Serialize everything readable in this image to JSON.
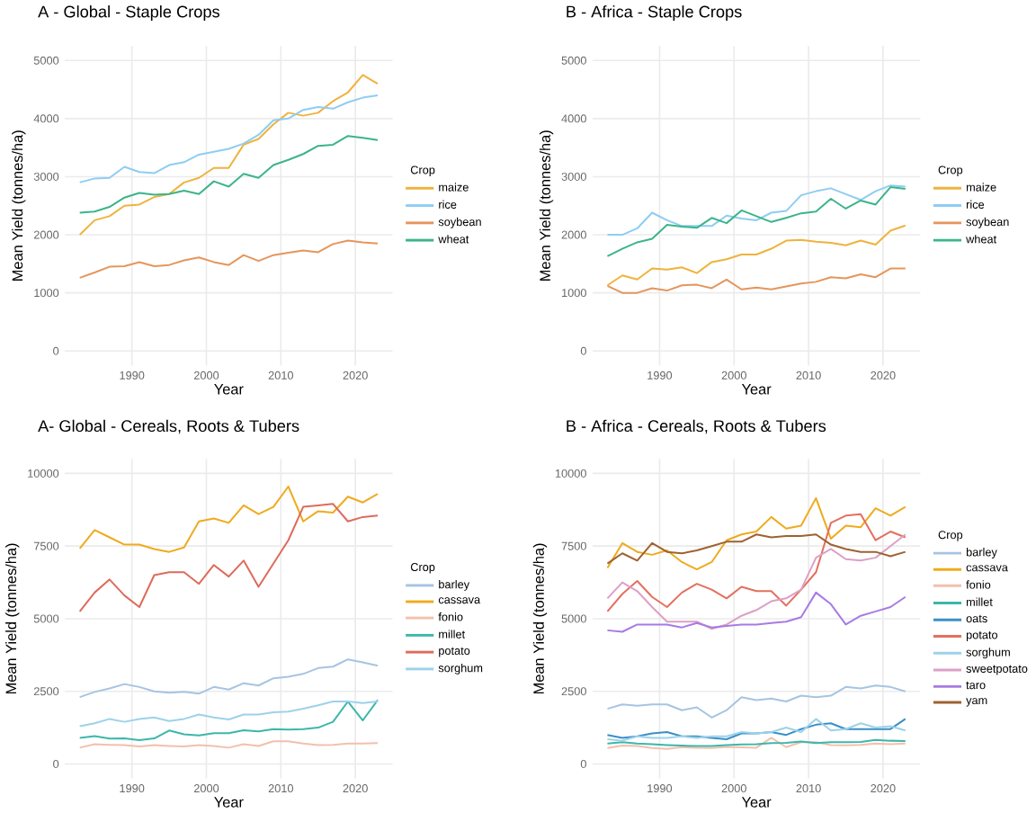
{
  "chart_data": [
    {
      "type": "line",
      "title": "A - Global - Staple Crops",
      "xlabel": "Year",
      "ylabel": "Mean Yield (tonnes/ha)",
      "legend_title": "Crop",
      "legend": "right",
      "grid": true,
      "x": [
        1983,
        1985,
        1987,
        1989,
        1991,
        1993,
        1995,
        1997,
        1999,
        2001,
        2003,
        2005,
        2007,
        2009,
        2011,
        2013,
        2015,
        2017,
        2019,
        2021,
        2023
      ],
      "xlim": [
        1981,
        2025
      ],
      "ylim": [
        -250,
        5250
      ],
      "xticks": [
        1990,
        2000,
        2010,
        2020
      ],
      "yticks": [
        0,
        1000,
        2000,
        3000,
        4000,
        5000
      ],
      "series": [
        {
          "name": "maize",
          "color": "#efb33c",
          "values": [
            2000,
            2250,
            2320,
            2500,
            2520,
            2650,
            2700,
            2900,
            2980,
            3150,
            3150,
            3550,
            3650,
            3900,
            4100,
            4050,
            4100,
            4300,
            4450,
            4750,
            4600
          ]
        },
        {
          "name": "rice",
          "color": "#8ecdf2",
          "values": [
            2900,
            2970,
            2980,
            3170,
            3080,
            3060,
            3200,
            3250,
            3380,
            3430,
            3480,
            3570,
            3720,
            3970,
            4000,
            4150,
            4200,
            4170,
            4280,
            4360,
            4400
          ]
        },
        {
          "name": "soybean",
          "color": "#e4965c",
          "values": [
            1260,
            1350,
            1450,
            1460,
            1530,
            1460,
            1480,
            1560,
            1610,
            1530,
            1480,
            1650,
            1550,
            1650,
            1690,
            1730,
            1700,
            1840,
            1900,
            1870,
            1850
          ]
        },
        {
          "name": "wheat",
          "color": "#3cb48a",
          "values": [
            2380,
            2400,
            2480,
            2640,
            2720,
            2690,
            2700,
            2760,
            2700,
            2920,
            2830,
            3050,
            2980,
            3200,
            3290,
            3390,
            3530,
            3550,
            3700,
            3670,
            3630
          ]
        }
      ]
    },
    {
      "type": "line",
      "title": "B - Africa - Staple Crops",
      "xlabel": "Year",
      "ylabel": "Mean Yield (tonnes/ha)",
      "legend_title": "Crop",
      "legend": "right",
      "grid": true,
      "x": [
        1983,
        1985,
        1987,
        1989,
        1991,
        1993,
        1995,
        1997,
        1999,
        2001,
        2003,
        2005,
        2007,
        2009,
        2011,
        2013,
        2015,
        2017,
        2019,
        2021,
        2023
      ],
      "xlim": [
        1981,
        2025
      ],
      "ylim": [
        -250,
        5250
      ],
      "xticks": [
        1990,
        2000,
        2010,
        2020
      ],
      "yticks": [
        0,
        1000,
        2000,
        3000,
        4000,
        5000
      ],
      "series": [
        {
          "name": "maize",
          "color": "#efb33c",
          "values": [
            1130,
            1300,
            1230,
            1420,
            1400,
            1440,
            1340,
            1530,
            1580,
            1660,
            1660,
            1760,
            1900,
            1910,
            1880,
            1860,
            1820,
            1900,
            1830,
            2070,
            2160
          ]
        },
        {
          "name": "rice",
          "color": "#8ecdf2",
          "values": [
            2000,
            2000,
            2110,
            2380,
            2250,
            2150,
            2150,
            2150,
            2330,
            2280,
            2250,
            2380,
            2410,
            2680,
            2750,
            2800,
            2700,
            2600,
            2750,
            2850,
            2830
          ]
        },
        {
          "name": "soybean",
          "color": "#e4965c",
          "values": [
            1120,
            1000,
            1000,
            1080,
            1040,
            1130,
            1140,
            1080,
            1230,
            1060,
            1090,
            1060,
            1110,
            1160,
            1190,
            1270,
            1250,
            1320,
            1270,
            1420,
            1420
          ]
        },
        {
          "name": "wheat",
          "color": "#3cb48a",
          "values": [
            1630,
            1760,
            1870,
            1930,
            2170,
            2140,
            2120,
            2290,
            2200,
            2420,
            2320,
            2220,
            2290,
            2370,
            2400,
            2620,
            2450,
            2590,
            2520,
            2820,
            2790
          ]
        }
      ]
    },
    {
      "type": "line",
      "title": "A- Global - Cereals, Roots & Tubers",
      "xlabel": "Year",
      "ylabel": "Mean Yield (tonnes/ha)",
      "legend_title": "Crop",
      "legend": "right",
      "grid": true,
      "x": [
        1983,
        1985,
        1987,
        1989,
        1991,
        1993,
        1995,
        1997,
        1999,
        2001,
        2003,
        2005,
        2007,
        2009,
        2011,
        2013,
        2015,
        2017,
        2019,
        2021,
        2023
      ],
      "xlim": [
        1981,
        2025
      ],
      "ylim": [
        -500,
        10500
      ],
      "xticks": [
        1990,
        2000,
        2010,
        2020
      ],
      "yticks": [
        0,
        2500,
        5000,
        7500,
        10000
      ],
      "series": [
        {
          "name": "barley",
          "color": "#a6c4e3",
          "values": [
            2300,
            2480,
            2600,
            2750,
            2650,
            2500,
            2450,
            2480,
            2420,
            2650,
            2560,
            2780,
            2700,
            2950,
            3000,
            3100,
            3300,
            3350,
            3600,
            3500,
            3380
          ]
        },
        {
          "name": "cassava",
          "color": "#eeab1e",
          "values": [
            7420,
            8050,
            7800,
            7550,
            7550,
            7400,
            7300,
            7450,
            8350,
            8450,
            8300,
            8900,
            8600,
            8850,
            9550,
            8350,
            8700,
            8650,
            9200,
            9000,
            9300
          ]
        },
        {
          "name": "fonio",
          "color": "#f2c0ad",
          "values": [
            560,
            680,
            660,
            650,
            600,
            650,
            620,
            600,
            650,
            620,
            560,
            680,
            620,
            780,
            780,
            700,
            650,
            660,
            700,
            700,
            720
          ]
        },
        {
          "name": "millet",
          "color": "#3cb7aa",
          "values": [
            900,
            960,
            870,
            880,
            820,
            880,
            1150,
            1020,
            980,
            1060,
            1060,
            1160,
            1120,
            1200,
            1180,
            1200,
            1250,
            1450,
            2150,
            1500,
            2200
          ]
        },
        {
          "name": "potato",
          "color": "#dd6b5c",
          "values": [
            5250,
            5900,
            6350,
            5800,
            5400,
            6500,
            6600,
            6600,
            6200,
            6850,
            6450,
            7000,
            6100,
            6900,
            7700,
            8850,
            8900,
            8950,
            8350,
            8500,
            8550
          ]
        },
        {
          "name": "sorghum",
          "color": "#9dd2ea",
          "values": [
            1300,
            1400,
            1550,
            1450,
            1550,
            1600,
            1480,
            1550,
            1700,
            1600,
            1530,
            1700,
            1700,
            1780,
            1800,
            1900,
            2020,
            2150,
            2150,
            2100,
            2150
          ]
        }
      ]
    },
    {
      "type": "line",
      "title": "B - Africa - Cereals, Roots & Tubers",
      "xlabel": "Year",
      "ylabel": "Mean Yield (tonnes/ha)",
      "legend_title": "Crop",
      "legend": "right",
      "grid": true,
      "x": [
        1983,
        1985,
        1987,
        1989,
        1991,
        1993,
        1995,
        1997,
        1999,
        2001,
        2003,
        2005,
        2007,
        2009,
        2011,
        2013,
        2015,
        2017,
        2019,
        2021,
        2023
      ],
      "xlim": [
        1981,
        2025
      ],
      "ylim": [
        -500,
        10500
      ],
      "xticks": [
        1990,
        2000,
        2010,
        2020
      ],
      "yticks": [
        0,
        2500,
        5000,
        7500,
        10000
      ],
      "series": [
        {
          "name": "barley",
          "color": "#a6c4e3",
          "values": [
            1900,
            2050,
            2000,
            2050,
            2050,
            1850,
            1950,
            1600,
            1850,
            2300,
            2200,
            2250,
            2150,
            2350,
            2300,
            2350,
            2650,
            2600,
            2700,
            2650,
            2500
          ]
        },
        {
          "name": "cassava",
          "color": "#eeab1e",
          "values": [
            6750,
            7600,
            7300,
            7200,
            7350,
            6950,
            6700,
            6950,
            7700,
            7900,
            8000,
            8500,
            8100,
            8200,
            9150,
            7750,
            8200,
            8150,
            8800,
            8550,
            8850
          ]
        },
        {
          "name": "fonio",
          "color": "#f2c0ad",
          "values": [
            550,
            630,
            620,
            550,
            520,
            580,
            560,
            550,
            590,
            570,
            560,
            900,
            580,
            750,
            750,
            650,
            640,
            660,
            700,
            680,
            700
          ]
        },
        {
          "name": "millet",
          "color": "#3cb7aa",
          "values": [
            700,
            750,
            700,
            680,
            650,
            630,
            620,
            620,
            650,
            670,
            680,
            720,
            730,
            770,
            720,
            750,
            750,
            760,
            830,
            800,
            790
          ]
        },
        {
          "name": "oats",
          "color": "#3a8fc6",
          "values": [
            1000,
            900,
            950,
            1050,
            1100,
            950,
            950,
            900,
            850,
            1050,
            1050,
            1100,
            1000,
            1200,
            1350,
            1400,
            1200,
            1200,
            1200,
            1200,
            1550
          ]
        },
        {
          "name": "potato",
          "color": "#e3705f",
          "values": [
            5250,
            5850,
            6300,
            5750,
            5400,
            5900,
            6200,
            6000,
            5700,
            6100,
            5950,
            5950,
            5450,
            6000,
            6600,
            8300,
            8550,
            8600,
            7700,
            8000,
            7800
          ]
        },
        {
          "name": "sorghum",
          "color": "#9dd2ea",
          "values": [
            850,
            800,
            950,
            900,
            900,
            950,
            900,
            950,
            950,
            1100,
            1050,
            1100,
            1250,
            1100,
            1550,
            1150,
            1200,
            1400,
            1250,
            1300,
            1150
          ]
        },
        {
          "name": "sweetpotato",
          "color": "#dda0c6",
          "values": [
            5700,
            6250,
            5950,
            5400,
            4900,
            4900,
            4900,
            4650,
            4800,
            5100,
            5300,
            5600,
            5700,
            6000,
            7100,
            7400,
            7050,
            7000,
            7100,
            7500,
            7900
          ]
        },
        {
          "name": "taro",
          "color": "#a77be3",
          "values": [
            4600,
            4550,
            4800,
            4800,
            4800,
            4700,
            4850,
            4700,
            4750,
            4800,
            4800,
            4850,
            4900,
            5050,
            5900,
            5500,
            4800,
            5100,
            5250,
            5400,
            5750
          ]
        },
        {
          "name": "yam",
          "color": "#9e6230",
          "values": [
            6900,
            7250,
            7000,
            7600,
            7300,
            7250,
            7350,
            7500,
            7650,
            7650,
            7900,
            7800,
            7850,
            7850,
            7900,
            7550,
            7400,
            7300,
            7300,
            7150,
            7300
          ]
        }
      ]
    }
  ]
}
